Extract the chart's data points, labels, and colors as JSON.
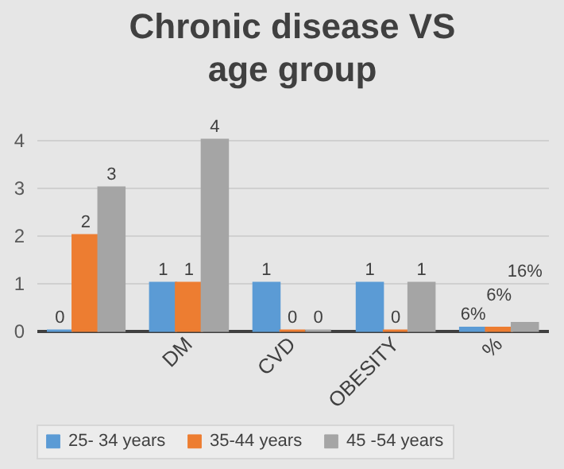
{
  "chart_data": {
    "type": "bar",
    "title": "Chronic disease VS age group",
    "categories": [
      null,
      "DM",
      "CVD",
      "OBESITY",
      "%"
    ],
    "series": [
      {
        "name": "25- 34 years",
        "color": "#5b9bd5",
        "values": [
          0,
          1,
          1,
          1,
          0.06
        ],
        "value_labels": [
          "0",
          "1",
          "1",
          "1",
          "6%"
        ]
      },
      {
        "name": "35-44 years",
        "color": "#ed7d31",
        "values": [
          2,
          1,
          0,
          0,
          0.06
        ],
        "value_labels": [
          "2",
          "1",
          "0",
          "0",
          "6%"
        ]
      },
      {
        "name": "45 -54 years",
        "color": "#a5a5a5",
        "values": [
          3,
          4,
          0,
          1,
          0.16
        ],
        "value_labels": [
          "3",
          "4",
          "0",
          "1",
          "16%"
        ]
      }
    ],
    "ylim": [
      0,
      4
    ],
    "yticks": [
      0,
      1,
      2,
      3,
      4
    ],
    "grid": "y",
    "legend": "bottom"
  }
}
